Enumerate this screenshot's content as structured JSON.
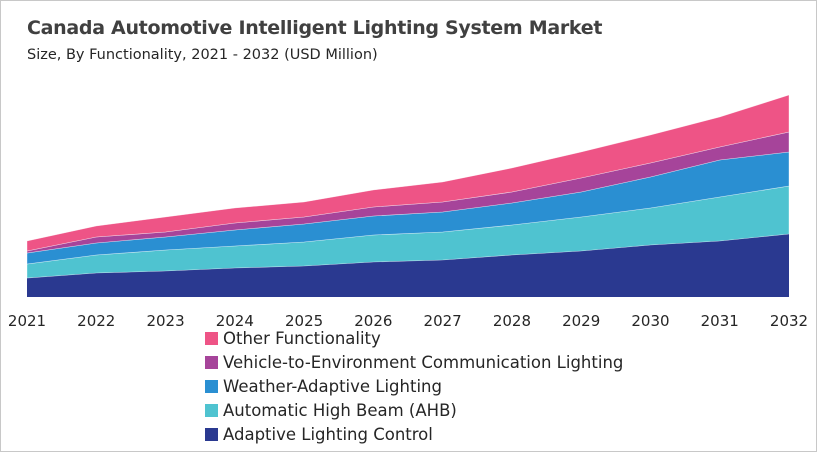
{
  "chart_data": {
    "type": "area",
    "stacked": true,
    "title": "Canada Automotive Intelligent Lighting System Market",
    "subtitle": "Size, By Functionality, 2021 - 2032 (USD Million)",
    "xlabel": "",
    "ylabel": "",
    "grid": false,
    "legend_position": "bottom",
    "x": [
      "2021",
      "2022",
      "2023",
      "2024",
      "2025",
      "2026",
      "2027",
      "2028",
      "2029",
      "2030",
      "2031",
      "2032"
    ],
    "series": [
      {
        "name": "Adaptive Lighting Control",
        "color": "#2A3990",
        "values": [
          19,
          24,
          26,
          29,
          31,
          35,
          37,
          42,
          46,
          52,
          56,
          63
        ]
      },
      {
        "name": "Automatic High Beam (AHB)",
        "color": "#4FC3D0",
        "values": [
          14,
          18,
          21,
          22,
          24,
          27,
          28,
          30,
          34,
          37,
          44,
          48
        ]
      },
      {
        "name": "Weather-Adaptive Lighting",
        "color": "#2A8FD2",
        "values": [
          11,
          12,
          13,
          16,
          18,
          19,
          20,
          22,
          25,
          31,
          37,
          34
        ]
      },
      {
        "name": "Vehicle-to-Environment Communication Lighting",
        "color": "#A6449A",
        "values": [
          2,
          6,
          5,
          7,
          7,
          9,
          10,
          11,
          14,
          14,
          13,
          20
        ]
      },
      {
        "name": "Other Functionality",
        "color": "#EE5486",
        "values": [
          10,
          11,
          15,
          15,
          15,
          17,
          20,
          24,
          26,
          28,
          30,
          37
        ]
      }
    ],
    "legend_order": [
      4,
      3,
      2,
      1,
      0
    ]
  }
}
